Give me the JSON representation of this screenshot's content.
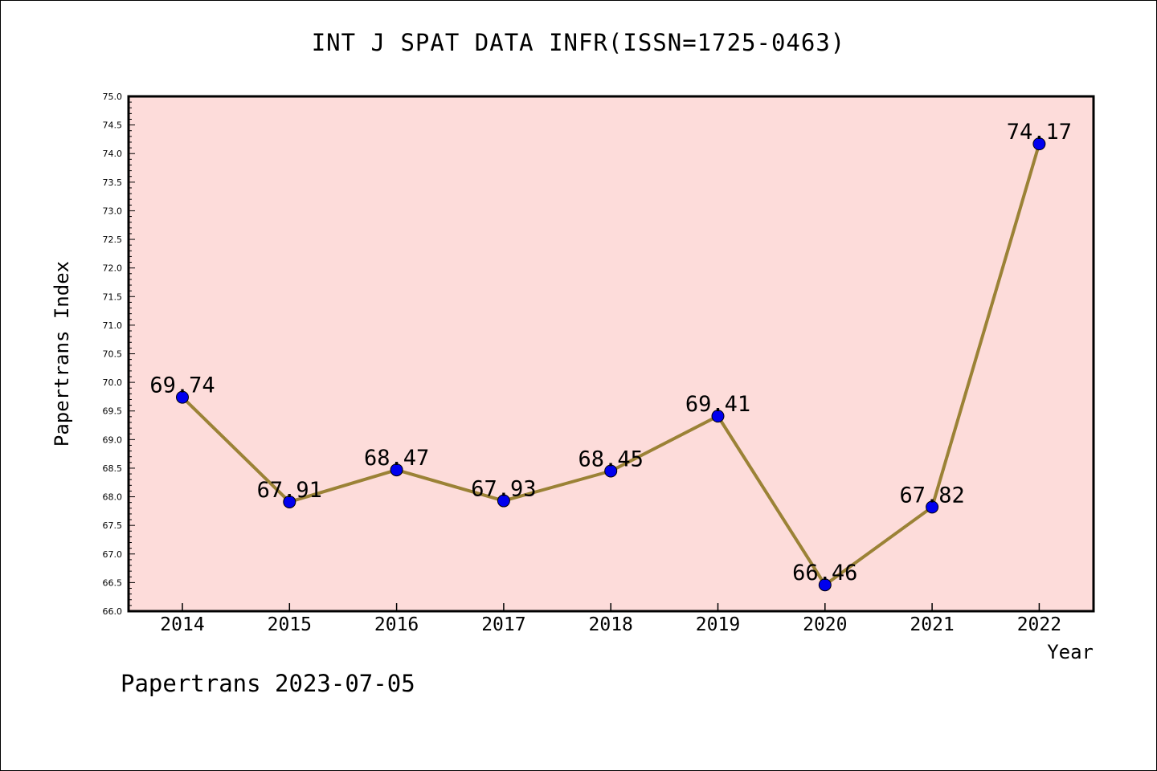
{
  "footer": {
    "note": "Papertrans 2023-07-05"
  },
  "chart_data": {
    "type": "line",
    "title": "INT J SPAT DATA INFR(ISSN=1725-0463)",
    "xlabel": "Year",
    "ylabel": "Papertrans Index",
    "categories": [
      "2014",
      "2015",
      "2016",
      "2017",
      "2018",
      "2019",
      "2020",
      "2021",
      "2022"
    ],
    "series": [
      {
        "values": [
          69.74,
          67.91,
          68.47,
          67.93,
          68.45,
          69.41,
          66.46,
          67.82,
          74.17
        ],
        "labels": [
          "69.74",
          "67.91",
          "68.47",
          "67.93",
          "68.45",
          "69.41",
          "66.46",
          "67.82",
          "74.17"
        ],
        "line_color": "#9b8236",
        "marker_color": "#0000ee"
      }
    ],
    "ylim": [
      66.0,
      75.0
    ],
    "yticks": [
      "66.0",
      "66.5",
      "67.0",
      "67.5",
      "68.0",
      "68.5",
      "69.0",
      "69.5",
      "70.0",
      "70.5",
      "71.0",
      "71.5",
      "72.0",
      "72.5",
      "73.0",
      "73.5",
      "74.0",
      "74.5",
      "75.0"
    ],
    "grid": false,
    "plot_background": "#fddcda"
  }
}
